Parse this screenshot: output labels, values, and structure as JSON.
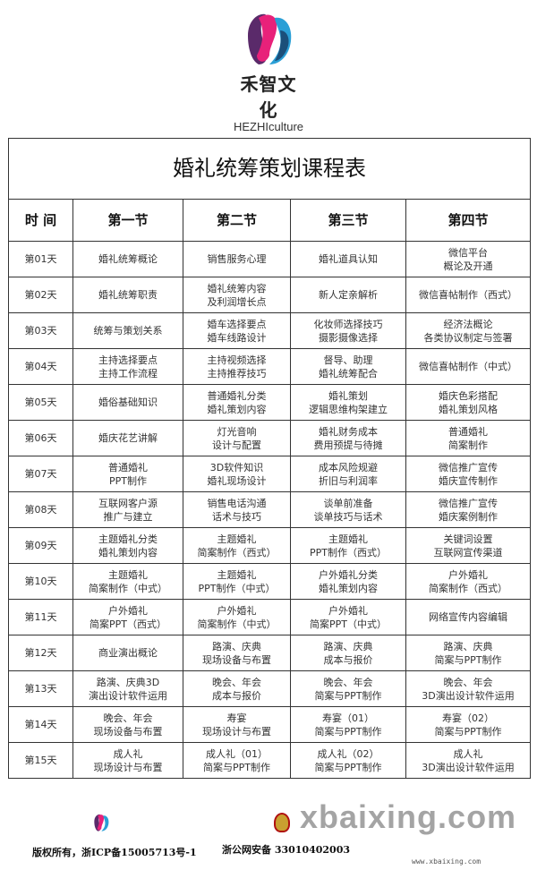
{
  "brand": {
    "name_cn": "禾智文化",
    "name_en": "HEZHIculture"
  },
  "table": {
    "title": "婚礼统筹策划课程表",
    "headers": [
      "时 间",
      "第一节",
      "第二节",
      "第三节",
      "第四节"
    ],
    "rows": [
      [
        "第01天",
        "婚礼统筹概论",
        "销售服务心理",
        "婚礼道具认知",
        "微信平台\n概论及开通"
      ],
      [
        "第02天",
        "婚礼统筹职责",
        "婚礼统筹内容\n及利润增长点",
        "新人定亲解析",
        "微信喜帖制作（西式）"
      ],
      [
        "第03天",
        "统筹与策划关系",
        "婚车选择要点\n婚车线路设计",
        "化妆师选择技巧\n摄影摄像选择",
        "经济法概论\n各类协议制定与签署"
      ],
      [
        "第04天",
        "主持选择要点\n主持工作流程",
        "主持视频选择\n主持推荐技巧",
        "督导、助理\n婚礼统筹配合",
        "微信喜帖制作（中式）"
      ],
      [
        "第05天",
        "婚俗基础知识",
        "普通婚礼分类\n婚礼策划内容",
        "婚礼策划\n逻辑思维构架建立",
        "婚庆色彩搭配\n婚礼策划风格"
      ],
      [
        "第06天",
        "婚庆花艺讲解",
        "灯光音响\n设计与配置",
        "婚礼财务成本\n费用预提与待摊",
        "普通婚礼\n简案制作"
      ],
      [
        "第07天",
        "普通婚礼\nPPT制作",
        "3D软件知识\n婚礼现场设计",
        "成本风险规避\n折旧与利润率",
        "微信推广宣传\n婚庆宣传制作"
      ],
      [
        "第08天",
        "互联网客户源\n推广与建立",
        "销售电话沟通\n话术与技巧",
        "谈单前准备\n谈单技巧与话术",
        "微信推广宣传\n婚庆案例制作"
      ],
      [
        "第09天",
        "主题婚礼分类\n婚礼策划内容",
        "主题婚礼\n简案制作（西式）",
        "主题婚礼\nPPT制作（西式）",
        "关键词设置\n互联网宣传渠道"
      ],
      [
        "第10天",
        "主题婚礼\n简案制作（中式）",
        "主题婚礼\nPPT制作（中式）",
        "户外婚礼分类\n婚礼策划内容",
        "户外婚礼\n简案制作（西式）"
      ],
      [
        "第11天",
        "户外婚礼\n简案PPT（西式）",
        "户外婚礼\n简案制作（中式）",
        "户外婚礼\n简案PPT（中式）",
        "网络宣传内容编辑"
      ],
      [
        "第12天",
        "商业演出概论",
        "路演、庆典\n现场设备与布置",
        "路演、庆典\n成本与报价",
        "路演、庆典\n简案与PPT制作"
      ],
      [
        "第13天",
        "路演、庆典3D\n演出设计软件运用",
        "晚会、年会\n成本与报价",
        "晚会、年会\n简案与PPT制作",
        "晚会、年会\n3D演出设计软件运用"
      ],
      [
        "第14天",
        "晚会、年会\n现场设备与布置",
        "寿宴\n现场设计与布置",
        "寿宴（01）\n简案与PPT制作",
        "寿宴（02）\n简案与PPT制作"
      ],
      [
        "第15天",
        "成人礼\n现场设计与布置",
        "成人礼（01）\n简案与PPT制作",
        "成人礼（02）\n简案与PPT制作",
        "成人礼\n3D演出设计软件运用"
      ]
    ]
  },
  "footer": {
    "copyright": "版权所有，浙ICP备15005713号-1",
    "police": "浙公网安备 33010402003",
    "watermark": "xbaixing.com",
    "watermark_url": "www.xbaixing.com"
  },
  "colors": {
    "logo_pink": "#e8217a",
    "logo_blue": "#2a9fd6",
    "logo_purple": "#5a2a6a"
  }
}
